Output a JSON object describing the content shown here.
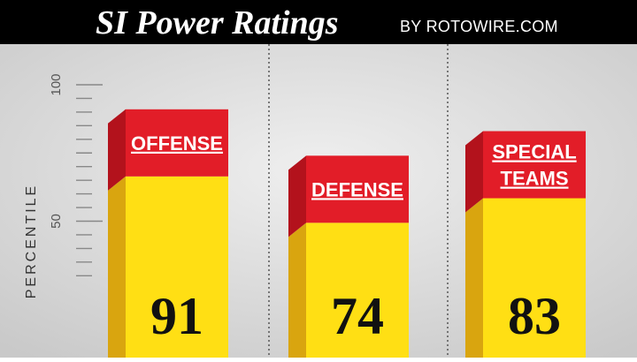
{
  "header": {
    "title": "SI Power Ratings",
    "byline": "BY ROTOWIRE.COM"
  },
  "colors": {
    "header_bg": "#000000",
    "panel_bg": "#efefef",
    "panel_edge": "#c9c9c9",
    "divider": "#555555",
    "bar_yellow": "#ffdf14",
    "bar_yellow_shadow": "#d9a50f",
    "label_red": "#e21d28",
    "label_red_shadow": "#b3121c",
    "ruler": "#888888"
  },
  "chart_data": {
    "type": "bar",
    "title": "SI Power Ratings",
    "ylabel": "PERCENTILE",
    "ylim": [
      0,
      100
    ],
    "y_tick_labels": [
      "50",
      "100"
    ],
    "grid": false,
    "categories": [
      {
        "label_lines": [
          "OFFENSE"
        ],
        "value": 91,
        "display": "91"
      },
      {
        "label_lines": [
          "DEFENSE"
        ],
        "value": 74,
        "display": "74"
      },
      {
        "label_lines": [
          "SPECIAL",
          "TEAMS"
        ],
        "value": 83,
        "display": "83"
      }
    ]
  }
}
